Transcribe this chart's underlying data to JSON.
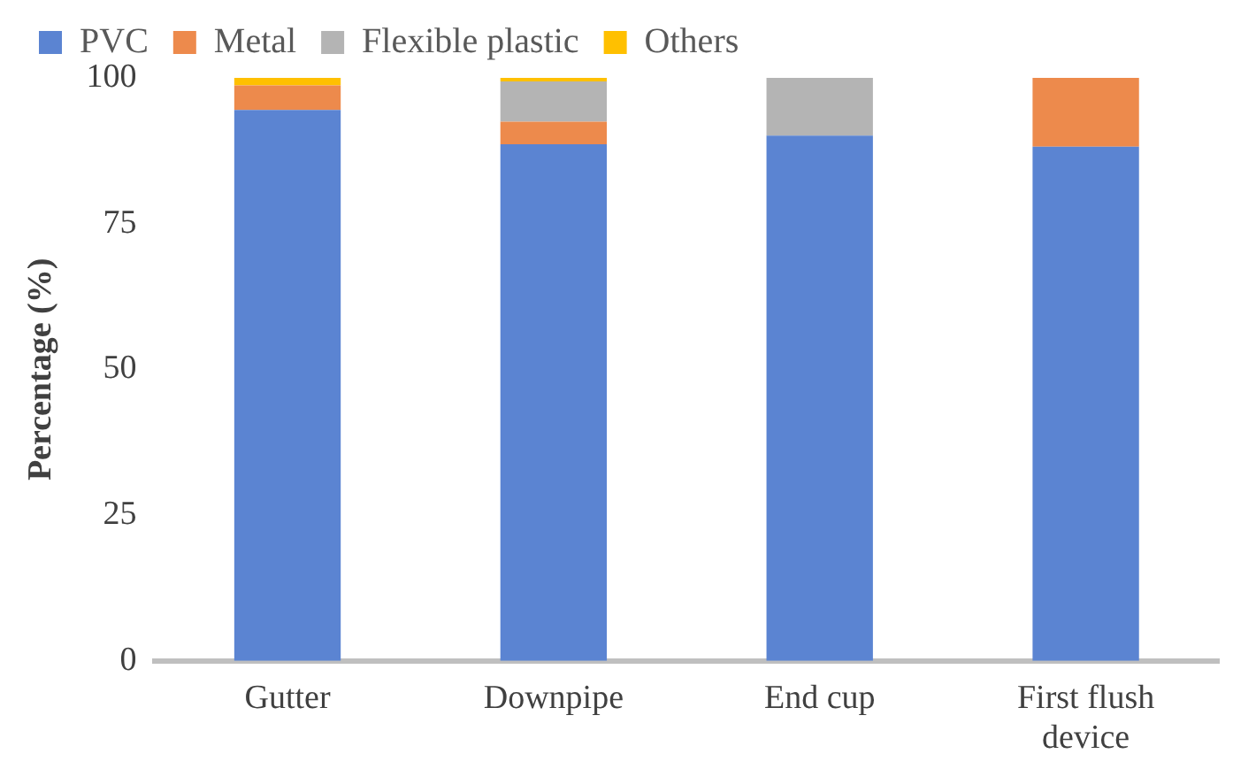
{
  "chart_data": {
    "type": "bar",
    "stacked": true,
    "ylabel": "Percentage (%)",
    "categories": [
      "Gutter",
      "Downpipe",
      "End cup",
      "First flush device"
    ],
    "series": [
      {
        "name": "PVC",
        "color": "#5b84d2",
        "values": [
          94.5,
          88.6,
          90.1,
          88.2
        ]
      },
      {
        "name": "Metal",
        "color": "#ed8a4c",
        "values": [
          4.2,
          3.9,
          0,
          11.8
        ]
      },
      {
        "name": "Flexible plastic",
        "color": "#b4b4b4",
        "values": [
          0,
          6.9,
          9.9,
          0
        ]
      },
      {
        "name": "Others",
        "color": "#ffc000",
        "values": [
          1.3,
          0.6,
          0,
          0
        ]
      }
    ],
    "ylim": [
      0,
      100
    ],
    "yticks": [
      0,
      25,
      50,
      75,
      100
    ],
    "grid": false,
    "legend": "top"
  }
}
